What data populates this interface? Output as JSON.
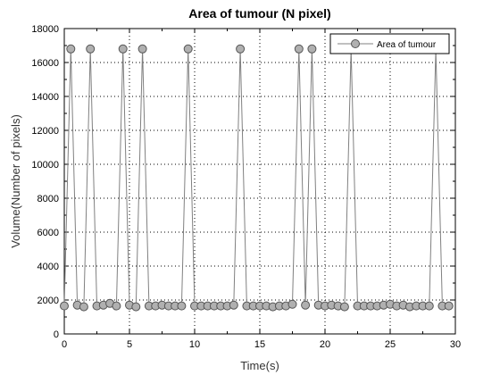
{
  "chart_data": {
    "type": "line",
    "title": "Area of tumour (N pixel)",
    "xlabel": "Time(s)",
    "ylabel": "Volume(Number of pixels)",
    "xlim": [
      0,
      30
    ],
    "ylim": [
      0,
      18000
    ],
    "xticks": [
      0,
      5,
      10,
      15,
      20,
      25,
      30
    ],
    "yticks": [
      0,
      2000,
      4000,
      6000,
      8000,
      10000,
      12000,
      14000,
      16000,
      18000
    ],
    "grid": true,
    "legend_position": "top-right",
    "series": [
      {
        "name": "Area of tumour",
        "color": "#808080",
        "marker_color": "#b0b0b0",
        "x": [
          0.0,
          0.5,
          1.0,
          1.5,
          2.0,
          2.5,
          3.0,
          3.5,
          4.0,
          4.5,
          5.0,
          5.5,
          6.0,
          6.5,
          7.0,
          7.5,
          8.0,
          8.5,
          9.0,
          9.5,
          10.0,
          10.5,
          11.0,
          11.5,
          12.0,
          12.5,
          13.0,
          13.5,
          14.0,
          14.5,
          15.0,
          15.5,
          16.0,
          16.5,
          17.0,
          17.5,
          18.0,
          18.5,
          19.0,
          19.5,
          20.0,
          20.5,
          21.0,
          21.5,
          22.0,
          22.5,
          23.0,
          23.5,
          24.0,
          24.5,
          25.0,
          25.5,
          26.0,
          26.5,
          27.0,
          27.5,
          28.0,
          28.5,
          29.0,
          29.5
        ],
        "y": [
          1650,
          16800,
          1700,
          1600,
          16800,
          1650,
          1700,
          1800,
          1650,
          16800,
          1700,
          1600,
          16800,
          1650,
          1650,
          1700,
          1650,
          1650,
          1650,
          16800,
          1650,
          1650,
          1650,
          1650,
          1650,
          1650,
          1700,
          16800,
          1650,
          1650,
          1650,
          1650,
          1600,
          1650,
          1650,
          1750,
          16800,
          1700,
          16800,
          1700,
          1650,
          1700,
          1650,
          1600,
          16800,
          1650,
          1650,
          1650,
          1650,
          1700,
          1750,
          1650,
          1700,
          1600,
          1650,
          1650,
          1650,
          16800,
          1650,
          1650
        ]
      }
    ]
  }
}
